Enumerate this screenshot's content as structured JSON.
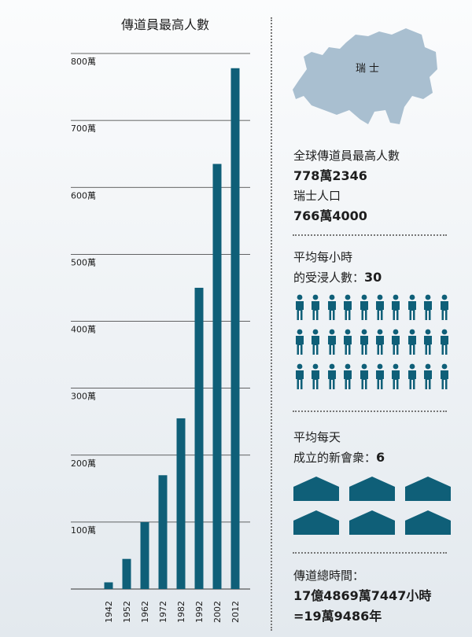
{
  "chart_data": {
    "type": "bar",
    "title": "傳道員最高人數",
    "categories": [
      "1942",
      "1952",
      "1962",
      "1972",
      "1982",
      "1992",
      "2002",
      "2012"
    ],
    "values": [
      10,
      45,
      100,
      170,
      255,
      450,
      635,
      778
    ],
    "ylim": [
      0,
      800
    ],
    "yticks": [
      100,
      200,
      300,
      400,
      500,
      600,
      700,
      800
    ],
    "ytick_labels": [
      "100萬",
      "200萬",
      "300萬",
      "400萬",
      "500萬",
      "600萬",
      "700萬",
      "800萬"
    ],
    "xlabel": "",
    "ylabel": "",
    "grid": true,
    "bar_color": "#0f5f78"
  },
  "map": {
    "label": "瑞士",
    "color": "#a9bfd0"
  },
  "stat1": {
    "label_a": "全球傳道員最高人數",
    "value_a": "778萬2346",
    "label_b": "瑞士人口",
    "value_b": "766萬4000"
  },
  "stat2": {
    "line1": "平均每小時",
    "line2_prefix": "的受浸人數：",
    "value": "30",
    "icon_count": 30,
    "icon_color": "#0f5f78"
  },
  "stat3": {
    "line1": "平均每天",
    "line2_prefix": "成立的新會衆：",
    "value": "6",
    "icon_count": 6,
    "icon_color": "#0f5f78"
  },
  "stat4": {
    "label": "傳道總時間：",
    "value_line1": "17億4869萬7447小時",
    "value_line2": "=19萬9486年"
  }
}
